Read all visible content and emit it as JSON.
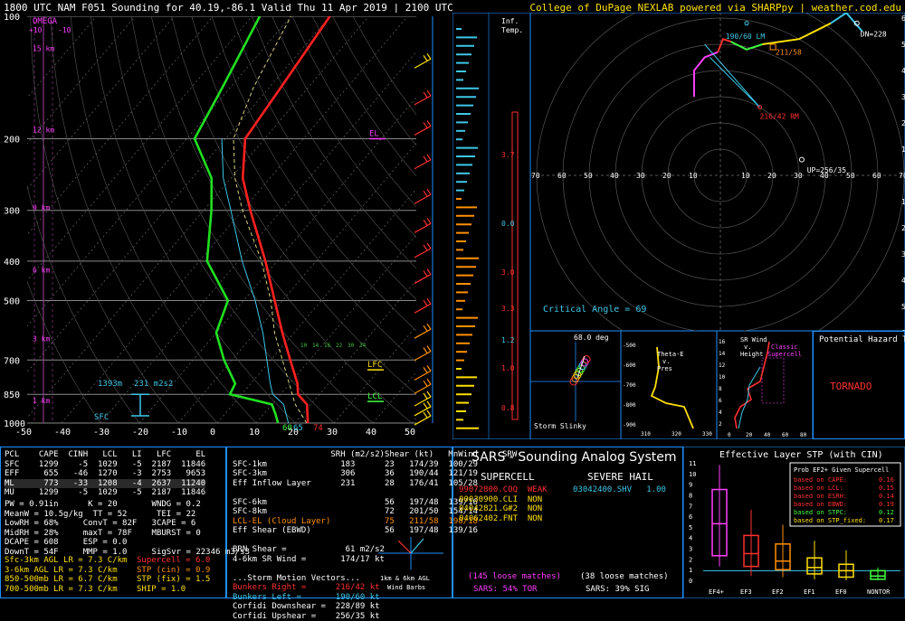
{
  "header": {
    "title": "1800 UTC NAM F051 Sounding for 40.19,-86.1 Valid  Thu 11 Apr 2019 | 2100 UTC",
    "credit": "College of DuPage NEXLAB powered via SHARPpy | weather.cod.edu"
  },
  "skewt": {
    "omega_label": "OMEGA",
    "omega_ticks": [
      "+10",
      "-10"
    ],
    "pressure_labels": [
      "100",
      "200",
      "300",
      "400",
      "500",
      "700",
      "850",
      "1000"
    ],
    "temp_labels": [
      "-50",
      "-40",
      "-30",
      "-20",
      "-10",
      "0",
      "10",
      "20",
      "30",
      "40",
      "50"
    ],
    "height_labels": [
      "15 km",
      "12 km",
      "9 km",
      "6 km",
      "3 km",
      "1 km",
      "SFC"
    ],
    "el_label": "EL",
    "lfc_label": "LFC",
    "lcl_label": "LCL",
    "srh_label": "1393m",
    "srh_value": "231 m2s2",
    "sfc_label": "SFC",
    "sfc_temp": "74",
    "sfc_td": "60",
    "sfc_wb": "65",
    "mix_labels": [
      "10",
      "14",
      "16",
      "22",
      "30",
      "34"
    ]
  },
  "inflow": {
    "label1": "Inf.",
    "label2": "Temp.",
    "values": [
      "3.7",
      "0.0",
      "3.0",
      "3.3",
      "1.2",
      "1.0",
      "0.8"
    ]
  },
  "hodograph": {
    "axis_labels": [
      "70",
      "60",
      "50",
      "40",
      "30",
      "20",
      "10",
      "10",
      "20",
      "30",
      "40",
      "50",
      "60",
      "70"
    ],
    "ring_labels_up": [
      "60",
      "50",
      "40",
      "30",
      "20",
      "10"
    ],
    "ring_labels_down": [
      "10",
      "20",
      "30",
      "40",
      "50",
      "60"
    ],
    "bl_label": "190/60 LM",
    "rm_label": "216/42 RM",
    "mean_label": "211/58",
    "dn_label": "DN=228",
    "up_label": "UP=256/35",
    "crit_angle": "Critical Angle = 69"
  },
  "slinky": {
    "deg": "68.0 deg",
    "title": "Storm Slinky"
  },
  "theta": {
    "title1": "Theta-E",
    "title2": "v.",
    "title3": "Pres",
    "ylabels": [
      "-500",
      "-600",
      "-700",
      "-800",
      "-900"
    ],
    "xlabels": [
      "310",
      "320",
      "330"
    ]
  },
  "srwind": {
    "title1": "SR Wind",
    "title2": "v.",
    "title3": "Height",
    "ylabels": [
      "16",
      "14",
      "12",
      "10",
      "8",
      "6",
      "4",
      "2"
    ],
    "xlabels": [
      "0",
      "20",
      "40",
      "60",
      "80"
    ],
    "classic": "Classic",
    "supercell": "Supercell"
  },
  "hazard": {
    "title": "Potential Hazard Type",
    "value": "TORNADO"
  },
  "parcel_table": {
    "header": [
      "PCL",
      "CAPE",
      "CINH",
      "LCL",
      "LI",
      "LFC",
      "EL"
    ],
    "rows": [
      [
        "SFC",
        "1299",
        "-5",
        "1029",
        "-5",
        "2187",
        "11846"
      ],
      [
        "EFF",
        "655",
        "-46",
        "1270",
        "-3",
        "2753",
        "9653"
      ],
      [
        "ML",
        "773",
        "-33",
        "1208",
        "-4",
        "2637",
        "11240"
      ],
      [
        "MU",
        "1299",
        "-5",
        "1029",
        "-5",
        "2187",
        "11846"
      ]
    ]
  },
  "indices": {
    "lines": [
      "PW = 0.91in      K = 20       WNDG = 0.2",
      "MeanW = 10.5g/kg  TT = 52      TEI = 22",
      "LowRH = 68%     ConvT = 82F   3CAPE = 6",
      "MidRH = 28%     maxT = 78F    MBURST = 0",
      "DCAPE = 608     ESP = 0.0",
      "DownT = 54F     MMP = 1.0     SigSvr = 22346 m3/s3"
    ]
  },
  "lapse": {
    "lines": [
      "Sfc-3km AGL LR = 7.3 C/km",
      "3-6km AGL LR = 7.3 C/km",
      "850-500mb LR = 6.7 C/km",
      "700-500mb LR = 7.3 C/km"
    ],
    "composite": [
      "Supercell = 6.0",
      "STP (cin) = 0.9",
      "STP (fix) = 1.5",
      "SHIP = 1.0"
    ]
  },
  "kinematics": {
    "header": [
      "",
      "SRH (m2/s2)",
      "Shear (kt)",
      "MnWind",
      "SRW"
    ],
    "rows": [
      [
        "SFC-1km",
        "183",
        "23",
        "174/39",
        "100/29"
      ],
      [
        "SFC-3km",
        "306",
        "36",
        "190/44",
        "121/19"
      ],
      [
        "Eff Inflow Layer",
        "231",
        "28",
        "176/41",
        "105/28"
      ],
      [
        "SFC-6km",
        "",
        "56",
        "197/48",
        "139/16"
      ],
      [
        "SFC-8km",
        "",
        "72",
        "201/50",
        "154/14"
      ],
      [
        "LCL-EL (Cloud Layer)",
        "",
        "75",
        "211/58",
        "198/18"
      ],
      [
        "Eff Shear (EBWD)",
        "",
        "56",
        "197/48",
        "139/16"
      ]
    ],
    "brn": "BRN Shear =            61 m2/s2",
    "srw46": "4-6km SR Wind =       174/17 kt",
    "motion_title": "...Storm Motion Vectors...",
    "motions": [
      [
        "Bunkers Right =",
        "216/42 kt"
      ],
      [
        "Bunkers Left =",
        "190/60 kt"
      ],
      [
        "Corfidi Downshear =",
        "228/89 kt"
      ],
      [
        "Corfidi Upshear =",
        "256/35 kt"
      ]
    ],
    "barb_label1": "1km & 6km AGL",
    "barb_label2": "Wind Barbs"
  },
  "sars": {
    "title": "SARS - Sounding Analog System",
    "supercell_title": "SUPERCELL",
    "hail_title": "SEVERE HAIL",
    "supercell_rows": [
      [
        "99072800.COQ",
        "WEAK"
      ],
      [
        "00030900.CLI",
        "NON"
      ],
      [
        "04042821.G#2",
        "NON"
      ],
      [
        "04062402.FNT",
        "NON"
      ]
    ],
    "hail_rows": [
      [
        "03042400.SHV",
        "1.00"
      ]
    ],
    "loose1": "(145 loose matches)",
    "loose2": "(38 loose matches)",
    "tor": "SARS: 54% TOR",
    "sig": "SARS: 39% SIG"
  },
  "stp": {
    "title": "Effective Layer STP (with CIN)",
    "prob_title": "Prob EF2+ Given Supercell",
    "probs": [
      [
        "based on CAPE:",
        "0.16"
      ],
      [
        "based on LCL:",
        "0.15"
      ],
      [
        "based on ESRH:",
        "0.14"
      ],
      [
        "based on EBWD:",
        "0.19"
      ],
      [
        "based on STPC:",
        "0.12"
      ],
      [
        "based on STP_fixed:",
        "0.17"
      ]
    ],
    "ylabels": [
      "11",
      "10",
      "9",
      "8",
      "7",
      "6",
      "5",
      "4",
      "3",
      "2",
      "1",
      "0"
    ],
    "xlabels": [
      "EF4+",
      "EF3",
      "EF2",
      "EF1",
      "EF0",
      "NONTOR"
    ]
  },
  "chart_data": {
    "type": "line",
    "title": "1800 UTC NAM F051 Sounding for 40.19,-86.1 Valid  Thu 11 Apr 2019 | 2100 UTC",
    "xlabel": "",
    "ylabel": "",
    "x_axis": "temperature (C), skewed",
    "y_axis": "pressure (mb), log scale",
    "ylim": [
      1000,
      100
    ],
    "xlim": [
      -50,
      50
    ],
    "series": [
      {
        "name": "",
        "color": "#ff2020",
        "points": [
          [
            1000,
            23.3
          ],
          [
            900,
            19
          ],
          [
            850,
            14.5
          ],
          [
            800,
            12
          ],
          [
            700,
            5
          ],
          [
            600,
            -3
          ],
          [
            500,
            -12
          ],
          [
            400,
            -23
          ],
          [
            300,
            -38
          ],
          [
            250,
            -47
          ],
          [
            200,
            -55
          ],
          [
            150,
            -57
          ],
          [
            100,
            -60
          ]
        ]
      },
      {
        "name": "",
        "color": "#20e020",
        "points": [
          [
            1000,
            15.6
          ],
          [
            950,
            13
          ],
          [
            900,
            10
          ],
          [
            850,
            -3
          ],
          [
            800,
            -4
          ],
          [
            700,
            -12
          ],
          [
            600,
            -20
          ],
          [
            500,
            -24
          ],
          [
            400,
            -38
          ],
          [
            300,
            -48
          ],
          [
            250,
            -55
          ],
          [
            200,
            -68
          ],
          [
            150,
            -72
          ],
          [
            100,
            -78
          ]
        ]
      }
    ],
    "stp_boxes": [
      {
        "cat": "EF4+",
        "min": 1.3,
        "q1": 2.3,
        "med": 5.3,
        "q3": 8.5,
        "max": 10.8,
        "color": "#ff40ff"
      },
      {
        "cat": "EF3",
        "min": 0.4,
        "q1": 1.3,
        "med": 2.5,
        "q3": 4.2,
        "max": 6.6,
        "color": "#ff3030"
      },
      {
        "cat": "EF2",
        "min": 0.3,
        "q1": 1.0,
        "med": 1.8,
        "q3": 3.4,
        "max": 5.2,
        "color": "#ff9000"
      },
      {
        "cat": "EF1",
        "min": 0.1,
        "q1": 0.6,
        "med": 1.2,
        "q3": 2.1,
        "max": 3.7,
        "color": "#ffe000"
      },
      {
        "cat": "EF0",
        "min": 0,
        "q1": 0.3,
        "med": 0.9,
        "q3": 1.5,
        "max": 2.8,
        "color": "#ffe000"
      },
      {
        "cat": "NONTOR",
        "min": 0,
        "q1": 0.1,
        "med": 0.4,
        "q3": 0.9,
        "max": 1.2,
        "color": "#40ff40"
      }
    ],
    "stp_ylim": [
      0,
      11
    ],
    "stp_value": 0.9
  }
}
